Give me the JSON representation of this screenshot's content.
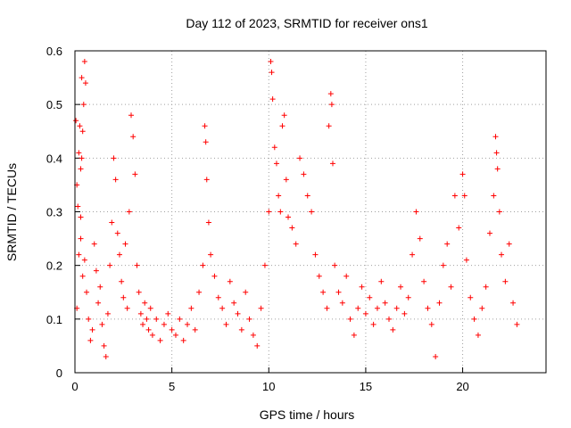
{
  "chart_data": {
    "type": "scatter",
    "title": "Day 112 of 2023, SRMTID for receiver ons1",
    "xlabel": "GPS time / hours",
    "ylabel": "SRMTID / TECUs",
    "xlim": [
      0,
      24.3
    ],
    "ylim": [
      0,
      0.6
    ],
    "x_ticks": [
      0,
      5,
      10,
      15,
      20
    ],
    "y_ticks": [
      0,
      0.1,
      0.2,
      0.3,
      0.4,
      0.5,
      0.6
    ],
    "x_tick_labels": [
      "0",
      "5",
      "10",
      "15",
      "20"
    ],
    "y_tick_labels": [
      "0",
      "0.1",
      "0.2",
      "0.3",
      "0.4",
      "0.5",
      "0.6"
    ],
    "grid": true,
    "marker": "+",
    "color": "#ff0000",
    "series": [
      {
        "name": "SRMTID",
        "points": [
          [
            0.05,
            0.47
          ],
          [
            0.1,
            0.35
          ],
          [
            0.15,
            0.31
          ],
          [
            0.2,
            0.41
          ],
          [
            0.25,
            0.46
          ],
          [
            0.3,
            0.29
          ],
          [
            0.35,
            0.55
          ],
          [
            0.4,
            0.45
          ],
          [
            0.45,
            0.5
          ],
          [
            0.5,
            0.58
          ],
          [
            0.55,
            0.54
          ],
          [
            0.35,
            0.4
          ],
          [
            0.3,
            0.38
          ],
          [
            0.1,
            0.12
          ],
          [
            0.2,
            0.22
          ],
          [
            0.3,
            0.25
          ],
          [
            0.4,
            0.18
          ],
          [
            0.5,
            0.21
          ],
          [
            0.6,
            0.15
          ],
          [
            0.7,
            0.1
          ],
          [
            0.8,
            0.06
          ],
          [
            0.9,
            0.08
          ],
          [
            1.0,
            0.24
          ],
          [
            1.1,
            0.19
          ],
          [
            1.2,
            0.13
          ],
          [
            1.3,
            0.16
          ],
          [
            1.4,
            0.09
          ],
          [
            1.5,
            0.05
          ],
          [
            1.6,
            0.03
          ],
          [
            1.7,
            0.11
          ],
          [
            1.8,
            0.2
          ],
          [
            1.9,
            0.28
          ],
          [
            2.0,
            0.4
          ],
          [
            2.1,
            0.36
          ],
          [
            2.2,
            0.26
          ],
          [
            2.3,
            0.22
          ],
          [
            2.4,
            0.17
          ],
          [
            2.5,
            0.14
          ],
          [
            2.6,
            0.24
          ],
          [
            2.7,
            0.12
          ],
          [
            2.8,
            0.3
          ],
          [
            2.9,
            0.48
          ],
          [
            3.0,
            0.44
          ],
          [
            3.1,
            0.37
          ],
          [
            3.2,
            0.2
          ],
          [
            3.3,
            0.15
          ],
          [
            3.4,
            0.11
          ],
          [
            3.5,
            0.09
          ],
          [
            3.6,
            0.13
          ],
          [
            3.7,
            0.1
          ],
          [
            3.8,
            0.08
          ],
          [
            3.9,
            0.12
          ],
          [
            4.0,
            0.07
          ],
          [
            4.2,
            0.1
          ],
          [
            4.4,
            0.06
          ],
          [
            4.6,
            0.09
          ],
          [
            4.8,
            0.11
          ],
          [
            5.0,
            0.08
          ],
          [
            5.2,
            0.07
          ],
          [
            5.4,
            0.1
          ],
          [
            5.6,
            0.06
          ],
          [
            5.8,
            0.09
          ],
          [
            6.0,
            0.12
          ],
          [
            6.2,
            0.08
          ],
          [
            6.4,
            0.15
          ],
          [
            6.6,
            0.2
          ],
          [
            6.7,
            0.46
          ],
          [
            6.75,
            0.43
          ],
          [
            6.8,
            0.36
          ],
          [
            6.9,
            0.28
          ],
          [
            7.0,
            0.22
          ],
          [
            7.2,
            0.18
          ],
          [
            7.4,
            0.14
          ],
          [
            7.6,
            0.12
          ],
          [
            7.8,
            0.09
          ],
          [
            8.0,
            0.17
          ],
          [
            8.2,
            0.13
          ],
          [
            8.4,
            0.11
          ],
          [
            8.6,
            0.08
          ],
          [
            8.8,
            0.15
          ],
          [
            9.0,
            0.1
          ],
          [
            9.2,
            0.07
          ],
          [
            9.4,
            0.05
          ],
          [
            9.6,
            0.12
          ],
          [
            9.8,
            0.2
          ],
          [
            10.0,
            0.3
          ],
          [
            10.1,
            0.58
          ],
          [
            10.15,
            0.56
          ],
          [
            10.2,
            0.51
          ],
          [
            10.3,
            0.42
          ],
          [
            10.4,
            0.39
          ],
          [
            10.5,
            0.33
          ],
          [
            10.6,
            0.3
          ],
          [
            10.7,
            0.46
          ],
          [
            10.8,
            0.48
          ],
          [
            10.9,
            0.36
          ],
          [
            11.0,
            0.29
          ],
          [
            11.2,
            0.27
          ],
          [
            11.4,
            0.24
          ],
          [
            11.6,
            0.4
          ],
          [
            11.8,
            0.37
          ],
          [
            12.0,
            0.33
          ],
          [
            12.2,
            0.3
          ],
          [
            12.4,
            0.22
          ],
          [
            12.6,
            0.18
          ],
          [
            12.8,
            0.15
          ],
          [
            13.0,
            0.12
          ],
          [
            13.1,
            0.46
          ],
          [
            13.2,
            0.52
          ],
          [
            13.25,
            0.5
          ],
          [
            13.3,
            0.39
          ],
          [
            13.4,
            0.2
          ],
          [
            13.6,
            0.15
          ],
          [
            13.8,
            0.13
          ],
          [
            14.0,
            0.18
          ],
          [
            14.2,
            0.1
          ],
          [
            14.4,
            0.07
          ],
          [
            14.6,
            0.12
          ],
          [
            14.8,
            0.16
          ],
          [
            15.0,
            0.11
          ],
          [
            15.2,
            0.14
          ],
          [
            15.4,
            0.09
          ],
          [
            15.6,
            0.12
          ],
          [
            15.8,
            0.17
          ],
          [
            16.0,
            0.13
          ],
          [
            16.2,
            0.1
          ],
          [
            16.4,
            0.08
          ],
          [
            16.6,
            0.12
          ],
          [
            16.8,
            0.16
          ],
          [
            17.0,
            0.11
          ],
          [
            17.2,
            0.14
          ],
          [
            17.4,
            0.22
          ],
          [
            17.6,
            0.3
          ],
          [
            17.8,
            0.25
          ],
          [
            18.0,
            0.17
          ],
          [
            18.2,
            0.12
          ],
          [
            18.4,
            0.09
          ],
          [
            18.6,
            0.03
          ],
          [
            18.8,
            0.13
          ],
          [
            19.0,
            0.2
          ],
          [
            19.2,
            0.24
          ],
          [
            19.4,
            0.16
          ],
          [
            19.6,
            0.33
          ],
          [
            19.8,
            0.27
          ],
          [
            20.0,
            0.37
          ],
          [
            20.1,
            0.33
          ],
          [
            20.2,
            0.21
          ],
          [
            20.4,
            0.14
          ],
          [
            20.6,
            0.1
          ],
          [
            20.8,
            0.07
          ],
          [
            21.0,
            0.12
          ],
          [
            21.2,
            0.16
          ],
          [
            21.4,
            0.26
          ],
          [
            21.6,
            0.33
          ],
          [
            21.7,
            0.44
          ],
          [
            21.75,
            0.41
          ],
          [
            21.8,
            0.38
          ],
          [
            21.9,
            0.3
          ],
          [
            22.0,
            0.22
          ],
          [
            22.2,
            0.17
          ],
          [
            22.4,
            0.24
          ],
          [
            22.6,
            0.13
          ],
          [
            22.8,
            0.09
          ]
        ]
      }
    ]
  }
}
